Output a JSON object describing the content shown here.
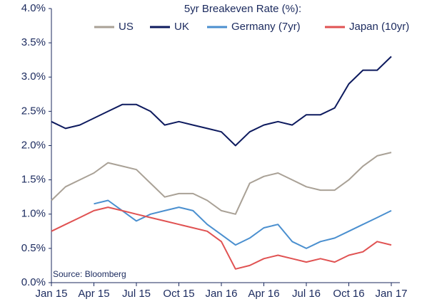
{
  "chart_data": {
    "type": "line",
    "title": "5yr Breakeven Rate (%):",
    "source": "Source: Bloomberg",
    "x": [
      "2015-01",
      "2015-02",
      "2015-03",
      "2015-04",
      "2015-05",
      "2015-06",
      "2015-07",
      "2015-08",
      "2015-09",
      "2015-10",
      "2015-11",
      "2015-12",
      "2016-01",
      "2016-02",
      "2016-03",
      "2016-04",
      "2016-05",
      "2016-06",
      "2016-07",
      "2016-08",
      "2016-09",
      "2016-10",
      "2016-11",
      "2016-12",
      "2017-01"
    ],
    "series": [
      {
        "name": "US",
        "color": "#a9a196",
        "values": [
          1.2,
          1.4,
          1.5,
          1.6,
          1.75,
          1.7,
          1.65,
          1.45,
          1.25,
          1.3,
          1.3,
          1.2,
          1.05,
          1.0,
          1.45,
          1.55,
          1.6,
          1.5,
          1.4,
          1.35,
          1.35,
          1.5,
          1.7,
          1.85,
          1.9
        ]
      },
      {
        "name": "UK",
        "color": "#0d1a5e",
        "values": [
          2.35,
          2.25,
          2.3,
          2.4,
          2.5,
          2.6,
          2.6,
          2.5,
          2.3,
          2.35,
          2.3,
          2.25,
          2.2,
          2.0,
          2.2,
          2.3,
          2.35,
          2.3,
          2.45,
          2.45,
          2.55,
          2.9,
          3.1,
          3.1,
          3.3
        ]
      },
      {
        "name": "Germany (7yr)",
        "color": "#4a8fcf",
        "values": [
          null,
          null,
          null,
          1.15,
          1.2,
          1.05,
          0.9,
          1.0,
          1.05,
          1.1,
          1.05,
          0.85,
          0.7,
          0.55,
          0.65,
          0.8,
          0.85,
          0.6,
          0.5,
          0.6,
          0.65,
          0.75,
          0.85,
          0.95,
          1.05
        ]
      },
      {
        "name": "Japan (10yr)",
        "color": "#e05252",
        "values": [
          0.75,
          0.85,
          0.95,
          1.05,
          1.1,
          1.05,
          1.0,
          0.95,
          0.9,
          0.85,
          0.8,
          0.75,
          0.6,
          0.2,
          0.25,
          0.35,
          0.4,
          0.35,
          0.3,
          0.35,
          0.3,
          0.4,
          0.45,
          0.6,
          0.55
        ]
      }
    ],
    "xticks": [
      {
        "value": "2015-01",
        "label": "Jan 15"
      },
      {
        "value": "2015-04",
        "label": "Apr 15"
      },
      {
        "value": "2015-07",
        "label": "Jul 15"
      },
      {
        "value": "2015-10",
        "label": "Oct 15"
      },
      {
        "value": "2016-01",
        "label": "Jan 16"
      },
      {
        "value": "2016-04",
        "label": "Apr 16"
      },
      {
        "value": "2016-07",
        "label": "Jul 16"
      },
      {
        "value": "2016-10",
        "label": "Oct 16"
      },
      {
        "value": "2017-01",
        "label": "Jan 17"
      }
    ],
    "ylim": [
      0,
      4
    ],
    "yticks": [
      {
        "value": 0,
        "label": "0.0%"
      },
      {
        "value": 0.5,
        "label": "0.5%"
      },
      {
        "value": 1,
        "label": "1.0%"
      },
      {
        "value": 1.5,
        "label": "1.5%"
      },
      {
        "value": 2,
        "label": "2.0%"
      },
      {
        "value": 2.5,
        "label": "2.5%"
      },
      {
        "value": 3,
        "label": "3.0%"
      },
      {
        "value": 3.5,
        "label": "3.5%"
      },
      {
        "value": 4,
        "label": "4.0%"
      }
    ],
    "grid": false
  }
}
